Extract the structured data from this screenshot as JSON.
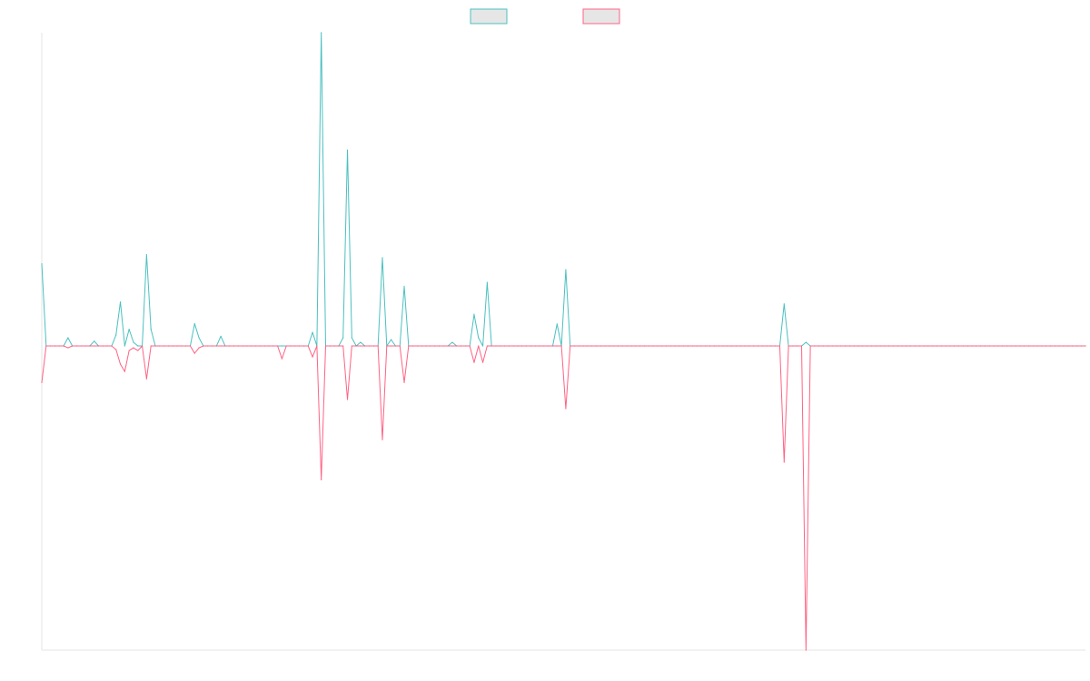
{
  "chart_data": {
    "type": "line",
    "title": "",
    "xlabel": "",
    "ylabel": "",
    "legend": "top-center",
    "grid": false,
    "ylim": [
      -1.0,
      1.03
    ],
    "series": [
      {
        "color": "#4bc0c0",
        "fill": "#e6e6e6",
        "values": [
          0.27,
          0.0,
          0.0,
          0.0,
          0.0,
          0.0,
          0.027,
          0.0,
          0.0,
          0.0,
          0.0,
          0.0,
          0.016,
          0.0,
          0.0,
          0.0,
          0.0,
          0.036,
          0.145,
          0.0,
          0.055,
          0.012,
          0.0,
          0.0,
          0.3,
          0.055,
          0.0,
          0.0,
          0.0,
          0.0,
          0.0,
          0.0,
          0.0,
          0.0,
          0.0,
          0.073,
          0.027,
          0.0,
          0.0,
          0.0,
          0.0,
          0.032,
          0.0,
          0.0,
          0.0,
          0.0,
          0.0,
          0.0,
          0.0,
          0.0,
          0.0,
          0.0,
          0.0,
          0.0,
          0.0,
          0.0,
          0.0,
          0.0,
          0.0,
          0.0,
          0.0,
          0.0,
          0.045,
          0.0,
          1.03,
          0.0,
          0.0,
          0.0,
          0.0,
          0.027,
          0.644,
          0.027,
          0.0,
          0.012,
          0.0,
          0.0,
          0.0,
          0.0,
          0.29,
          0.0,
          0.021,
          0.0,
          0.0,
          0.196,
          0.0,
          0.0,
          0.0,
          0.0,
          0.0,
          0.0,
          0.0,
          0.0,
          0.0,
          0.0,
          0.012,
          0.0,
          0.0,
          0.0,
          0.0,
          0.104,
          0.027,
          0.0,
          0.209,
          0.0,
          0.0,
          0.0,
          0.0,
          0.0,
          0.0,
          0.0,
          0.0,
          0.0,
          0.0,
          0.0,
          0.0,
          0.0,
          0.0,
          0.0,
          0.072,
          0.0,
          0.251,
          0.0,
          0.0,
          0.0,
          0.0,
          0.0,
          0.0,
          0.0,
          0.0,
          0.0,
          0.0,
          0.0,
          0.0,
          0.0,
          0.0,
          0.0,
          0.0,
          0.0,
          0.0,
          0.0,
          0.0,
          0.0,
          0.0,
          0.0,
          0.0,
          0.0,
          0.0,
          0.0,
          0.0,
          0.0,
          0.0,
          0.0,
          0.0,
          0.0,
          0.0,
          0.0,
          0.0,
          0.0,
          0.0,
          0.0,
          0.0,
          0.0,
          0.0,
          0.0,
          0.0,
          0.0,
          0.0,
          0.0,
          0.0,
          0.0,
          0.138,
          0.0,
          0.0,
          0.0,
          0.0,
          0.012,
          0.0,
          0.0,
          0.0,
          0.0,
          0.0,
          0.0,
          0.0,
          0.0,
          0.0,
          0.0,
          0.0,
          0.0,
          0.0,
          0.0,
          0.0,
          0.0,
          0.0,
          0.0,
          0.0,
          0.0,
          0.0,
          0.0,
          0.0,
          0.0,
          0.0,
          0.0,
          0.0,
          0.0,
          0.0,
          0.0,
          0.0,
          0.0,
          0.0,
          0.0,
          0.0,
          0.0,
          0.0,
          0.0,
          0.0,
          0.0,
          0.0,
          0.0,
          0.0,
          0.0,
          0.0,
          0.0,
          0.0,
          0.0,
          0.0,
          0.0,
          0.0,
          0.0,
          0.0,
          0.0,
          0.0,
          0.0,
          0.0,
          0.0,
          0.0,
          0.0,
          0.0,
          0.0,
          0.0,
          0.0
        ]
      },
      {
        "color": "#ff6384",
        "fill": "#e6e6e6",
        "values": [
          -0.12,
          0.0,
          0.0,
          0.0,
          0.0,
          0.0,
          -0.006,
          0.0,
          0.0,
          0.0,
          0.0,
          0.0,
          0.0,
          0.0,
          0.0,
          0.0,
          0.0,
          -0.012,
          -0.06,
          -0.084,
          -0.015,
          -0.006,
          -0.015,
          0.0,
          -0.108,
          0.0,
          0.0,
          0.0,
          0.0,
          0.0,
          0.0,
          0.0,
          0.0,
          0.0,
          0.0,
          -0.024,
          -0.006,
          0.0,
          0.0,
          0.0,
          0.0,
          0.0,
          0.0,
          0.0,
          0.0,
          0.0,
          0.0,
          0.0,
          0.0,
          0.0,
          0.0,
          0.0,
          0.0,
          0.0,
          0.0,
          -0.042,
          0.0,
          0.0,
          0.0,
          0.0,
          0.0,
          0.0,
          -0.036,
          0.0,
          -0.44,
          0.0,
          0.0,
          0.0,
          0.0,
          0.0,
          -0.176,
          0.0,
          0.0,
          0.0,
          0.0,
          0.0,
          0.0,
          0.0,
          -0.308,
          0.0,
          0.0,
          0.0,
          0.0,
          -0.12,
          0.0,
          0.0,
          0.0,
          0.0,
          0.0,
          0.0,
          0.0,
          0.0,
          0.0,
          0.0,
          0.0,
          0.0,
          0.0,
          0.0,
          0.0,
          -0.054,
          0.0,
          -0.054,
          0.0,
          0.0,
          0.0,
          0.0,
          0.0,
          0.0,
          0.0,
          0.0,
          0.0,
          0.0,
          0.0,
          0.0,
          0.0,
          0.0,
          0.0,
          0.0,
          0.0,
          0.0,
          -0.206,
          0.0,
          0.0,
          0.0,
          0.0,
          0.0,
          0.0,
          0.0,
          0.0,
          0.0,
          0.0,
          0.0,
          0.0,
          0.0,
          0.0,
          0.0,
          0.0,
          0.0,
          0.0,
          0.0,
          0.0,
          0.0,
          0.0,
          0.0,
          0.0,
          0.0,
          0.0,
          0.0,
          0.0,
          0.0,
          0.0,
          0.0,
          0.0,
          0.0,
          0.0,
          0.0,
          0.0,
          0.0,
          0.0,
          0.0,
          0.0,
          0.0,
          0.0,
          0.0,
          0.0,
          0.0,
          0.0,
          0.0,
          0.0,
          0.0,
          -0.382,
          0.0,
          0.0,
          0.0,
          0.0,
          -1.0,
          0.0,
          0.0,
          0.0,
          0.0,
          0.0,
          0.0,
          0.0,
          0.0,
          0.0,
          0.0,
          0.0,
          0.0,
          0.0,
          0.0,
          0.0,
          0.0,
          0.0,
          0.0,
          0.0,
          0.0,
          0.0,
          0.0,
          0.0,
          0.0,
          0.0,
          0.0,
          0.0,
          0.0,
          0.0,
          0.0,
          0.0,
          0.0,
          0.0,
          0.0,
          0.0,
          0.0,
          0.0,
          0.0,
          0.0,
          0.0,
          0.0,
          0.0,
          0.0,
          0.0,
          0.0,
          0.0,
          0.0,
          0.0,
          0.0,
          0.0,
          0.0,
          0.0,
          0.0,
          0.0,
          0.0,
          0.0,
          0.0,
          0.0,
          0.0,
          0.0,
          0.0,
          0.0,
          0.0,
          0.0
        ]
      }
    ]
  }
}
